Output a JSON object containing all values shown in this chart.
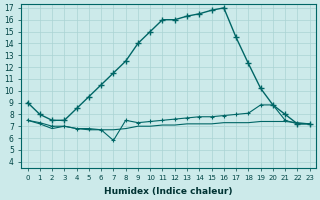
{
  "xlabel": "Humidex (Indice chaleur)",
  "bg_color": "#cceaea",
  "grid_color": "#aad4d4",
  "line_color": "#006666",
  "xlim": [
    -0.5,
    23.5
  ],
  "ylim": [
    4,
    17
  ],
  "yticks": [
    4,
    5,
    6,
    7,
    8,
    9,
    10,
    11,
    12,
    13,
    14,
    15,
    16,
    17
  ],
  "xticks": [
    0,
    1,
    2,
    3,
    4,
    5,
    6,
    7,
    8,
    9,
    10,
    11,
    12,
    13,
    14,
    15,
    16,
    17,
    18,
    19,
    20,
    21,
    22,
    23
  ],
  "series1_x": [
    0,
    1,
    2,
    3,
    4,
    5,
    6,
    7,
    8,
    9,
    10,
    11,
    12,
    13,
    14,
    15,
    16,
    17,
    18,
    19,
    20,
    21,
    22,
    23
  ],
  "series1_y": [
    9.0,
    8.0,
    7.5,
    7.5,
    8.5,
    9.5,
    10.5,
    11.5,
    12.5,
    14.0,
    15.0,
    16.0,
    16.0,
    16.3,
    16.5,
    16.8,
    17.0,
    14.5,
    12.3,
    10.2,
    8.8,
    8.0,
    7.2,
    7.2
  ],
  "series2_x": [
    0,
    1,
    2,
    3,
    4,
    5,
    6,
    7,
    8,
    9,
    10,
    11,
    12,
    13,
    14,
    15,
    16,
    17,
    18,
    19,
    20,
    21,
    22,
    23
  ],
  "series2_y": [
    7.5,
    7.3,
    7.0,
    7.0,
    6.8,
    6.8,
    6.7,
    5.8,
    7.5,
    7.3,
    7.4,
    7.5,
    7.6,
    7.7,
    7.8,
    7.8,
    7.9,
    8.0,
    8.1,
    8.8,
    8.8,
    7.5,
    7.2,
    7.2
  ],
  "series3_x": [
    0,
    1,
    2,
    3,
    4,
    5,
    6,
    7,
    8,
    9,
    10,
    11,
    12,
    13,
    14,
    15,
    16,
    17,
    18,
    19,
    20,
    21,
    22,
    23
  ],
  "series3_y": [
    7.5,
    7.2,
    6.8,
    7.0,
    6.8,
    6.7,
    6.7,
    6.7,
    6.8,
    7.0,
    7.0,
    7.1,
    7.1,
    7.2,
    7.2,
    7.2,
    7.3,
    7.3,
    7.3,
    7.4,
    7.4,
    7.4,
    7.3,
    7.2
  ]
}
